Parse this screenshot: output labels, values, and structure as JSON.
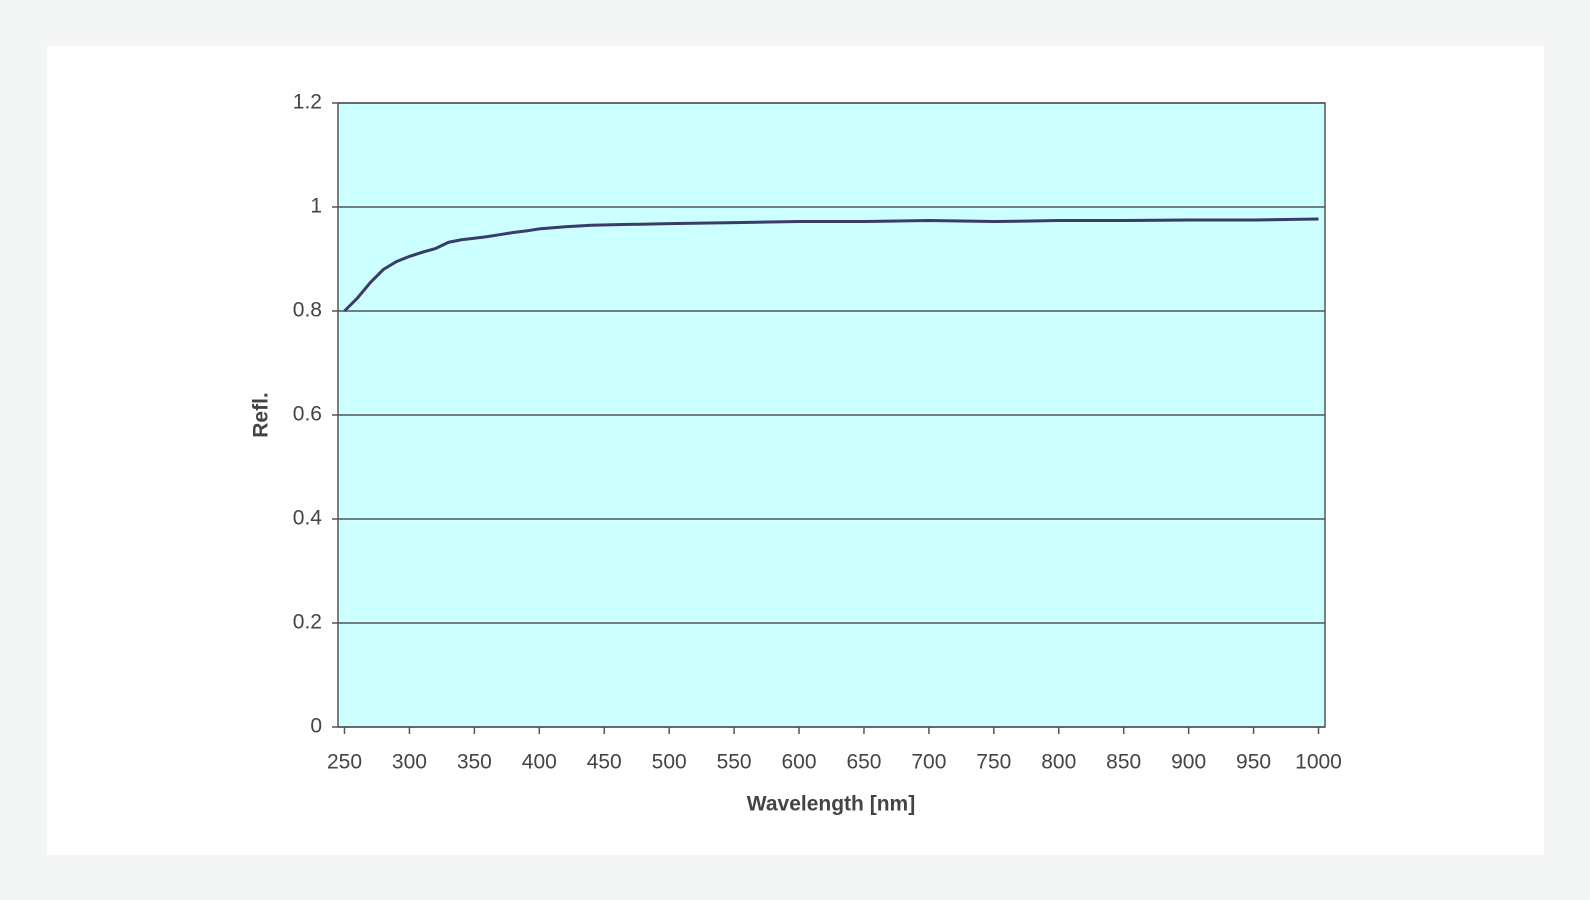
{
  "chart_data": {
    "type": "line",
    "x_label": "Wavelength [nm]",
    "y_label": "Refl.",
    "x": [
      250,
      260,
      270,
      280,
      290,
      300,
      310,
      320,
      330,
      340,
      350,
      360,
      370,
      380,
      390,
      400,
      420,
      440,
      460,
      500,
      550,
      600,
      650,
      700,
      750,
      800,
      850,
      900,
      950,
      1000
    ],
    "values": [
      0.8,
      0.825,
      0.855,
      0.88,
      0.895,
      0.905,
      0.913,
      0.92,
      0.932,
      0.937,
      0.94,
      0.943,
      0.947,
      0.951,
      0.954,
      0.958,
      0.962,
      0.965,
      0.966,
      0.968,
      0.97,
      0.972,
      0.972,
      0.974,
      0.972,
      0.974,
      0.974,
      0.975,
      0.975,
      0.977
    ],
    "color": "#3b3b6b",
    "xlim": [
      245,
      1005
    ],
    "xticks": [
      250,
      300,
      350,
      400,
      450,
      500,
      550,
      600,
      650,
      700,
      750,
      800,
      850,
      900,
      950,
      1000
    ],
    "ylim": [
      0,
      1.2
    ],
    "yticks": [
      0,
      0.2,
      0.4,
      0.6,
      0.8,
      1,
      1.2
    ],
    "grid": true
  }
}
